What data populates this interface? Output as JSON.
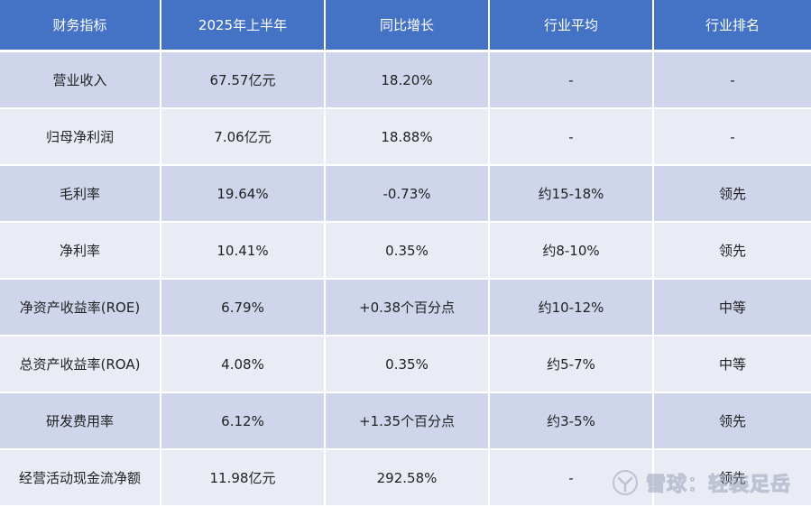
{
  "table": {
    "headers": [
      "财务指标",
      "2025年上半年",
      "同比增长",
      "行业平均",
      "行业排名"
    ],
    "rows": [
      [
        "营业收入",
        "67.57亿元",
        "18.20%",
        "-",
        "-"
      ],
      [
        "归母净利润",
        "7.06亿元",
        "18.88%",
        "-",
        "-"
      ],
      [
        "毛利率",
        "19.64%",
        "-0.73%",
        "约15-18%",
        "领先"
      ],
      [
        "净利率",
        "10.41%",
        "0.35%",
        "约8-10%",
        "领先"
      ],
      [
        "净资产收益率(ROE)",
        "6.79%",
        "+0.38个百分点",
        "约10-12%",
        "中等"
      ],
      [
        "总资产收益率(ROA)",
        "4.08%",
        "0.35%",
        "约5-7%",
        "中等"
      ],
      [
        "研发费用率",
        "6.12%",
        "+1.35个百分点",
        "约3-5%",
        "领先"
      ],
      [
        "经营活动现金流净额",
        "11.98亿元",
        "292.58%",
        "-",
        "领先"
      ]
    ]
  },
  "watermark": {
    "text": "雪球：轻装足岳",
    "icon": "snowball-logo-icon"
  },
  "colors": {
    "header_bg": "#4472c4",
    "row_odd_bg": "#cfd5ea",
    "row_even_bg": "#e9ebf5"
  }
}
